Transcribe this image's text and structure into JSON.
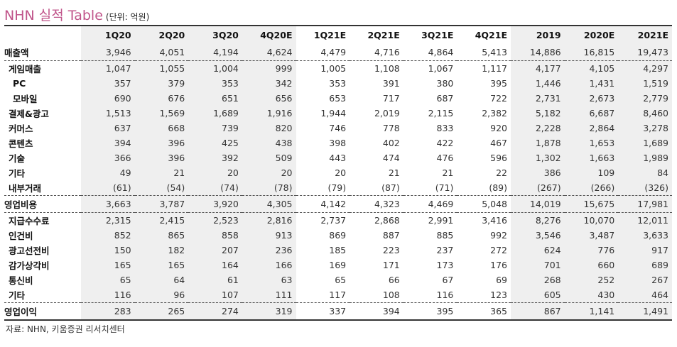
{
  "title": "NHN 실적 Table",
  "unit": "(단위: 억원)",
  "columns": [
    "1Q20",
    "2Q20",
    "3Q20",
    "4Q20E",
    "1Q21E",
    "2Q21E",
    "3Q21E",
    "4Q21E",
    "2019",
    "2020E",
    "2021E"
  ],
  "rows": [
    {
      "label": "매출액",
      "level": 0,
      "values": [
        "3,946",
        "4,051",
        "4,194",
        "4,624",
        "4,479",
        "4,716",
        "4,864",
        "5,413",
        "14,886",
        "16,815",
        "19,473"
      ]
    },
    {
      "label": "게임매출",
      "level": 1,
      "values": [
        "1,047",
        "1,055",
        "1,004",
        "999",
        "1,005",
        "1,108",
        "1,067",
        "1,117",
        "4,177",
        "4,105",
        "4,297"
      ]
    },
    {
      "label": "PC",
      "level": 2,
      "values": [
        "357",
        "379",
        "353",
        "342",
        "353",
        "391",
        "380",
        "395",
        "1,446",
        "1,431",
        "1,519"
      ]
    },
    {
      "label": "모바일",
      "level": 2,
      "values": [
        "690",
        "676",
        "651",
        "656",
        "653",
        "717",
        "687",
        "722",
        "2,731",
        "2,673",
        "2,779"
      ]
    },
    {
      "label": "결제&광고",
      "level": 1,
      "values": [
        "1,513",
        "1,569",
        "1,689",
        "1,916",
        "1,944",
        "2,019",
        "2,115",
        "2,382",
        "5,182",
        "6,687",
        "8,460"
      ]
    },
    {
      "label": "커머스",
      "level": 1,
      "values": [
        "637",
        "668",
        "739",
        "820",
        "746",
        "778",
        "833",
        "920",
        "2,228",
        "2,864",
        "3,278"
      ]
    },
    {
      "label": "콘텐츠",
      "level": 1,
      "values": [
        "394",
        "396",
        "425",
        "438",
        "398",
        "402",
        "422",
        "467",
        "1,878",
        "1,653",
        "1,689"
      ]
    },
    {
      "label": "기술",
      "level": 1,
      "values": [
        "366",
        "396",
        "392",
        "509",
        "443",
        "474",
        "476",
        "596",
        "1,302",
        "1,663",
        "1,989"
      ]
    },
    {
      "label": "기타",
      "level": 1,
      "values": [
        "49",
        "21",
        "20",
        "20",
        "20",
        "21",
        "21",
        "22",
        "386",
        "109",
        "84"
      ]
    },
    {
      "label": "내부거래",
      "level": 1,
      "values": [
        "(61)",
        "(54)",
        "(74)",
        "(78)",
        "(79)",
        "(87)",
        "(71)",
        "(89)",
        "(267)",
        "(266)",
        "(326)"
      ]
    },
    {
      "label": "영업비용",
      "level": 0,
      "values": [
        "3,663",
        "3,787",
        "3,920",
        "4,305",
        "4,142",
        "4,323",
        "4,469",
        "5,048",
        "14,019",
        "15,675",
        "17,981"
      ]
    },
    {
      "label": "지급수수료",
      "level": 1,
      "values": [
        "2,315",
        "2,415",
        "2,523",
        "2,816",
        "2,737",
        "2,868",
        "2,991",
        "3,416",
        "8,276",
        "10,070",
        "12,011"
      ]
    },
    {
      "label": "인건비",
      "level": 1,
      "values": [
        "852",
        "865",
        "858",
        "913",
        "869",
        "887",
        "885",
        "992",
        "3,546",
        "3,487",
        "3,633"
      ]
    },
    {
      "label": "광고선전비",
      "level": 1,
      "values": [
        "150",
        "182",
        "207",
        "236",
        "185",
        "223",
        "237",
        "272",
        "624",
        "776",
        "917"
      ]
    },
    {
      "label": "감가상각비",
      "level": 1,
      "values": [
        "165",
        "165",
        "164",
        "166",
        "169",
        "171",
        "173",
        "176",
        "701",
        "660",
        "689"
      ]
    },
    {
      "label": "통신비",
      "level": 1,
      "values": [
        "65",
        "64",
        "61",
        "63",
        "65",
        "66",
        "67",
        "69",
        "268",
        "252",
        "267"
      ]
    },
    {
      "label": "기타",
      "level": 1,
      "values": [
        "116",
        "96",
        "107",
        "111",
        "117",
        "108",
        "116",
        "123",
        "605",
        "430",
        "464"
      ]
    },
    {
      "label": "영업이익",
      "level": 0,
      "values": [
        "283",
        "265",
        "274",
        "319",
        "337",
        "394",
        "395",
        "365",
        "867",
        "1,141",
        "1,491"
      ]
    }
  ],
  "source": "자료: NHN, 키움증권 리서치센터",
  "colors": {
    "title": "#c0548a",
    "shade": "#efefef"
  }
}
